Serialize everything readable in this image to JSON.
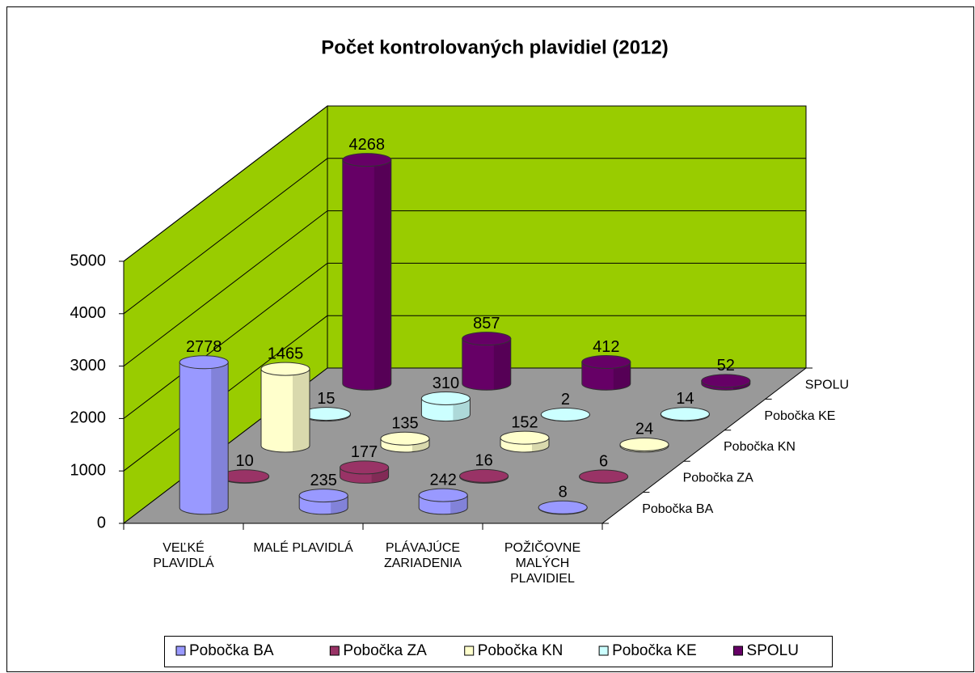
{
  "chart_data": {
    "type": "bar3d",
    "title": "Počet kontrolovaných plavidiel (2012)",
    "categories": [
      "VEĽKÉ PLAVIDLÁ",
      "MALÉ PLAVIDLÁ",
      "PLÁVAJÚCE ZARIADENIA",
      "POŽIČOVNE MALÝCH PLAVIDIEL"
    ],
    "series": [
      {
        "name": "Pobočka BA",
        "color": "#9999ff",
        "values": [
          2778,
          235,
          242,
          8
        ]
      },
      {
        "name": "Pobočka ZA",
        "color": "#993366",
        "values": [
          10,
          177,
          16,
          6
        ]
      },
      {
        "name": "Pobočka KN",
        "color": "#ffffcc",
        "values": [
          1465,
          135,
          152,
          24
        ]
      },
      {
        "name": "Pobočka KE",
        "color": "#ccffff",
        "values": [
          15,
          310,
          2,
          14
        ]
      },
      {
        "name": "SPOLU",
        "color": "#660066",
        "values": [
          4268,
          857,
          412,
          52
        ]
      }
    ],
    "ylim": [
      0,
      5000
    ],
    "yticks": [
      0,
      1000,
      2000,
      3000,
      4000,
      5000
    ],
    "grid": true,
    "wall_color": "#99cc00",
    "floor_color": "#999999",
    "legend": "bottom"
  }
}
